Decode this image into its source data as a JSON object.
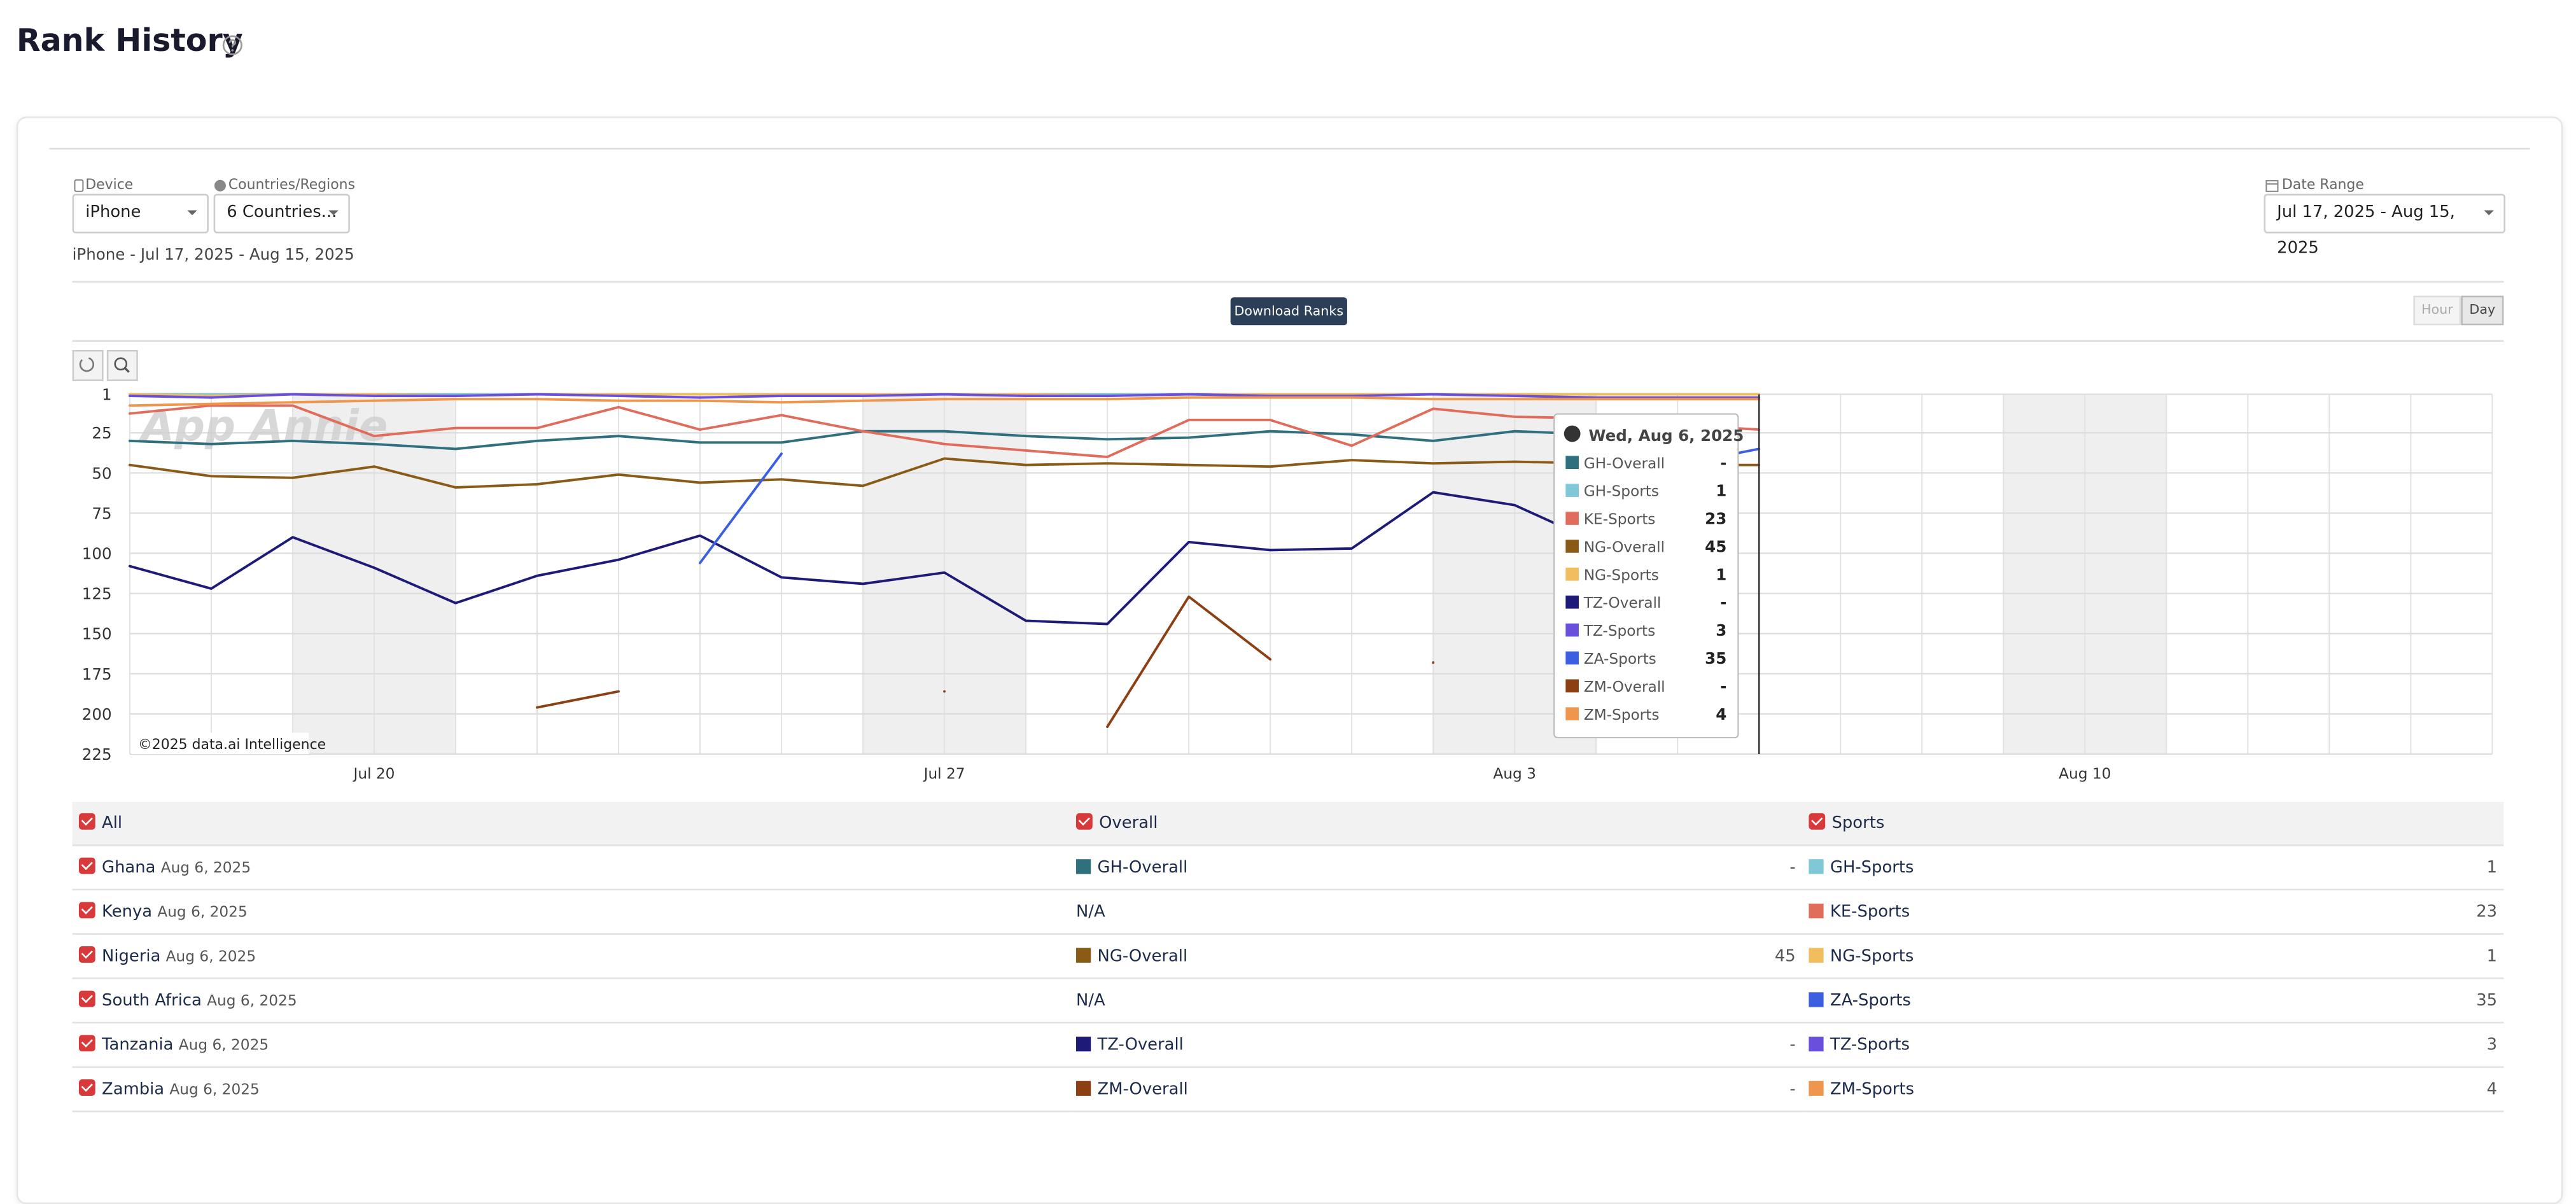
{
  "header": {
    "title": "Rank History"
  },
  "filters": {
    "device_label": "Device",
    "device": "iPhone",
    "countries_label": "Countries/Regions",
    "countries": "6 Countries...",
    "date_range_label": "Date Range",
    "date_range": "Jul 17, 2025 - Aug 15, 2025"
  },
  "summary": "iPhone - Jul 17, 2025 - Aug 15, 2025",
  "toolbar": {
    "download": "Download Ranks",
    "granularity": [
      "Hour",
      "Day"
    ]
  },
  "chart_data": {
    "type": "line",
    "watermark": "App Annie",
    "credit": "©2025 data.ai Intelligence",
    "x": [
      "Jul 17",
      "Jul 18",
      "Jul 19",
      "Jul 20",
      "Jul 21",
      "Jul 22",
      "Jul 23",
      "Jul 24",
      "Jul 25",
      "Jul 26",
      "Jul 27",
      "Jul 28",
      "Jul 29",
      "Jul 30",
      "Jul 31",
      "Aug 1",
      "Aug 2",
      "Aug 3",
      "Aug 4",
      "Aug 5",
      "Aug 6"
    ],
    "xlim": [
      "Jul 17",
      "Aug 15"
    ],
    "xticks": [
      "Jul 20",
      "Jul 27",
      "Aug 3",
      "Aug 10"
    ],
    "ylim": [
      1,
      225
    ],
    "y_inverted": true,
    "yticks": [
      1,
      25,
      50,
      75,
      100,
      125,
      150,
      175,
      200,
      225
    ],
    "grid": true,
    "series": [
      {
        "name": "GH-Overall",
        "color": "#2f6f7e",
        "values": [
          30,
          32,
          30,
          32,
          35,
          30,
          27,
          31,
          31,
          24,
          24,
          27,
          29,
          28,
          24,
          26,
          30,
          24,
          26,
          27,
          null
        ]
      },
      {
        "name": "GH-Sports",
        "color": "#7ec8d8",
        "values": [
          1,
          1,
          1,
          1,
          1,
          1,
          1,
          1,
          1,
          1,
          1,
          1,
          1,
          1,
          1,
          1,
          1,
          1,
          1,
          1,
          1
        ]
      },
      {
        "name": "KE-Sports",
        "color": "#e06c5c",
        "values": [
          13,
          8,
          8,
          27,
          22,
          22,
          9,
          23,
          14,
          24,
          32,
          36,
          40,
          17,
          17,
          33,
          10,
          15,
          16,
          20,
          23
        ]
      },
      {
        "name": "NG-Overall",
        "color": "#8a5b17",
        "values": [
          45,
          52,
          53,
          46,
          59,
          57,
          51,
          56,
          54,
          58,
          41,
          45,
          44,
          45,
          46,
          42,
          44,
          43,
          44,
          45,
          45
        ]
      },
      {
        "name": "NG-Sports",
        "color": "#f2bd5f",
        "values": [
          1,
          2,
          1,
          1,
          2,
          1,
          1,
          1,
          1,
          1,
          1,
          1,
          2,
          1,
          1,
          1,
          1,
          1,
          1,
          1,
          1
        ]
      },
      {
        "name": "TZ-Overall",
        "color": "#1e1a78",
        "values": [
          108,
          122,
          90,
          109,
          131,
          114,
          104,
          89,
          115,
          119,
          112,
          142,
          144,
          93,
          98,
          97,
          62,
          70,
          93,
          null,
          null
        ]
      },
      {
        "name": "TZ-Sports",
        "color": "#6a4fdc",
        "values": [
          2,
          3,
          1,
          2,
          2,
          1,
          2,
          3,
          2,
          2,
          1,
          2,
          2,
          1,
          2,
          2,
          1,
          2,
          3,
          3,
          3
        ]
      },
      {
        "name": "ZA-Sports",
        "color": "#3b5fe0",
        "values": [
          null,
          null,
          null,
          null,
          null,
          null,
          null,
          106,
          38,
          null,
          null,
          null,
          null,
          null,
          null,
          null,
          null,
          null,
          null,
          45,
          35
        ]
      },
      {
        "name": "ZM-Overall",
        "color": "#8b3f12",
        "values": [
          null,
          null,
          null,
          null,
          null,
          196,
          186,
          null,
          null,
          null,
          186,
          null,
          208,
          127,
          166,
          null,
          168,
          null,
          null,
          null,
          null
        ]
      },
      {
        "name": "ZM-Sports",
        "color": "#f0964c",
        "values": [
          8,
          7,
          6,
          5,
          4,
          4,
          5,
          5,
          6,
          5,
          4,
          4,
          4,
          3,
          3,
          3,
          4,
          4,
          4,
          4,
          4
        ]
      }
    ],
    "tooltip": {
      "title": "Wed, Aug 6, 2025",
      "empty_label": "-"
    }
  },
  "table": {
    "headers": [
      "All",
      "Overall",
      "Sports"
    ],
    "rows": [
      {
        "country": "Ghana",
        "date": "Aug 6, 2025",
        "overall": {
          "name": "GH-Overall",
          "value": "-"
        },
        "sports": {
          "name": "GH-Sports",
          "value": 1
        }
      },
      {
        "country": "Kenya",
        "date": "Aug 6, 2025",
        "overall": "N/A",
        "sports": {
          "name": "KE-Sports",
          "value": 23
        }
      },
      {
        "country": "Nigeria",
        "date": "Aug 6, 2025",
        "overall": {
          "name": "NG-Overall",
          "value": 45
        },
        "sports": {
          "name": "NG-Sports",
          "value": 1
        }
      },
      {
        "country": "South Africa",
        "date": "Aug 6, 2025",
        "overall": "N/A",
        "sports": {
          "name": "ZA-Sports",
          "value": 35
        }
      },
      {
        "country": "Tanzania",
        "date": "Aug 6, 2025",
        "overall": {
          "name": "TZ-Overall",
          "value": "-"
        },
        "sports": {
          "name": "TZ-Sports",
          "value": 3
        }
      },
      {
        "country": "Zambia",
        "date": "Aug 6, 2025",
        "overall": {
          "name": "ZM-Overall",
          "value": "-"
        },
        "sports": {
          "name": "ZM-Sports",
          "value": 4
        }
      }
    ]
  }
}
